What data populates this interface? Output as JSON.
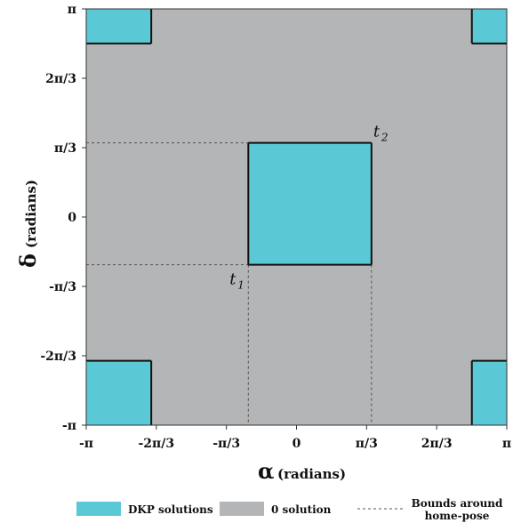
{
  "chart_data": {
    "type": "heatmap",
    "xlabel_symbol": "α",
    "xlabel_unit": "(radians)",
    "ylabel_symbol": "δ",
    "ylabel_unit": "(radians)",
    "xlim": [
      -3.1416,
      3.1416
    ],
    "ylim": [
      -3.1416,
      3.1416
    ],
    "x_ticks": [
      {
        "value": -3.1416,
        "label": "-π"
      },
      {
        "value": -2.0944,
        "label": "-2π/3"
      },
      {
        "value": -1.0472,
        "label": "-π/3"
      },
      {
        "value": 0,
        "label": "0"
      },
      {
        "value": 1.0472,
        "label": "π/3"
      },
      {
        "value": 2.0944,
        "label": "2π/3"
      },
      {
        "value": 3.1416,
        "label": "π"
      }
    ],
    "y_ticks": [
      {
        "value": -3.1416,
        "label": "-π"
      },
      {
        "value": -2.0944,
        "label": "-2π/3"
      },
      {
        "value": -1.0472,
        "label": "-π/3"
      },
      {
        "value": 0,
        "label": "0"
      },
      {
        "value": 1.0472,
        "label": "π/3"
      },
      {
        "value": 2.0944,
        "label": "2π/3"
      },
      {
        "value": 3.1416,
        "label": "π"
      }
    ],
    "background_region": {
      "name": "0 solution",
      "color": "#b3b5b6"
    },
    "solution_regions": [
      {
        "name": "DKP solutions",
        "color": "#5bc8d6",
        "x": [
          -3.1416,
          -2.17
        ],
        "y": [
          2.62,
          3.1416
        ]
      },
      {
        "name": "DKP solutions",
        "color": "#5bc8d6",
        "x": [
          2.62,
          3.1416
        ],
        "y": [
          2.62,
          3.1416
        ]
      },
      {
        "name": "DKP solutions",
        "color": "#5bc8d6",
        "x": [
          -0.72,
          1.12
        ],
        "y": [
          -0.72,
          1.12
        ]
      },
      {
        "name": "DKP solutions",
        "color": "#5bc8d6",
        "x": [
          -3.1416,
          -2.17
        ],
        "y": [
          -3.1416,
          -2.17
        ]
      },
      {
        "name": "DKP solutions",
        "color": "#5bc8d6",
        "x": [
          2.62,
          3.1416
        ],
        "y": [
          -3.1416,
          -2.17
        ]
      }
    ],
    "bounds": {
      "name": "Bounds around home-pose",
      "t1": {
        "label": "t",
        "sub": "1",
        "x": -0.72,
        "y": -0.72
      },
      "t2": {
        "label": "t",
        "sub": "2",
        "x": 1.12,
        "y": 1.12
      }
    },
    "legend": {
      "placement": "bottom",
      "items": [
        {
          "label": "DKP solutions",
          "color": "#5bc8d6",
          "kind": "swatch"
        },
        {
          "label": "0 solution",
          "color": "#b3b5b6",
          "kind": "swatch"
        },
        {
          "label_lines": [
            "Bounds around",
            "home-pose"
          ],
          "color": "#555555",
          "kind": "dashed"
        }
      ]
    }
  }
}
